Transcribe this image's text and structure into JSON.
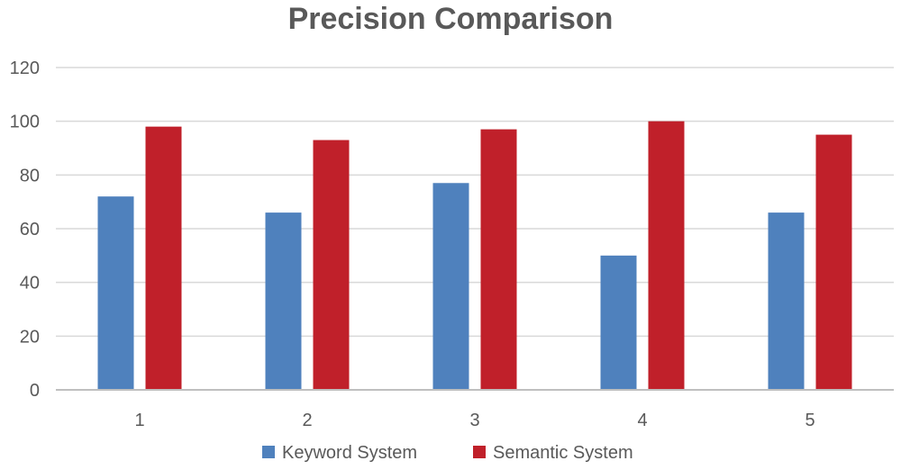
{
  "chart_data": {
    "type": "bar",
    "title": "Precision Comparison",
    "xlabel": "",
    "ylabel": "",
    "categories": [
      "1",
      "2",
      "3",
      "4",
      "5"
    ],
    "series": [
      {
        "name": "Keyword System",
        "values": [
          72,
          66,
          77,
          50,
          66
        ],
        "color": "#4f81bd"
      },
      {
        "name": "Semantic System",
        "values": [
          98,
          93,
          97,
          100,
          95
        ],
        "color": "#c0202a"
      }
    ],
    "ylim": [
      0,
      120
    ],
    "yticks": [
      0,
      20,
      40,
      60,
      80,
      100,
      120
    ],
    "grid": true,
    "gridColor": "#d9d9d9",
    "axisColor": "#bfbfbf",
    "legend_position": "bottom"
  }
}
